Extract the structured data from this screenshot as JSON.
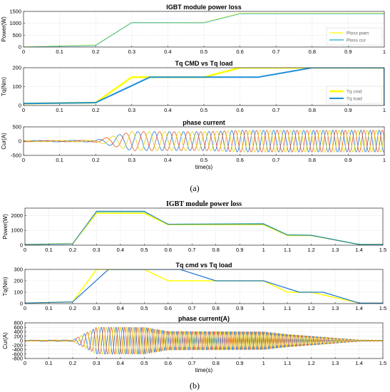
{
  "figure": {
    "label_a": "(a)",
    "label_b": "(b)"
  },
  "chart_data": [
    {
      "id": "a1",
      "type": "line",
      "title": "IGBT module power loss",
      "xlabel": "",
      "ylabel": "Power(W)",
      "xlim": [
        0,
        1
      ],
      "ylim": [
        0,
        1500
      ],
      "xticks": [
        0,
        0.1,
        0.2,
        0.3,
        0.4,
        0.5,
        0.6,
        0.7,
        0.8,
        0.9,
        1
      ],
      "yticks": [
        0,
        500,
        1000,
        1500
      ],
      "grid": true,
      "legend": "bottom-right",
      "series": [
        {
          "name": "Ploss pwm",
          "color": "#ffff33",
          "width": 1.5,
          "x": [
            0,
            0.2,
            0.3,
            0.5,
            0.6,
            1
          ],
          "y": [
            0,
            80,
            1030,
            1030,
            1420,
            1420
          ]
        },
        {
          "name": "Ploss cur",
          "color": "#3fb8c6",
          "width": 1,
          "x": [
            0,
            0.2,
            0.3,
            0.5,
            0.6,
            1
          ],
          "y": [
            0,
            70,
            1030,
            1020,
            1400,
            1400
          ]
        }
      ]
    },
    {
      "id": "a2",
      "type": "line",
      "title": "Tq CMD vs Tq load",
      "xlabel": "",
      "ylabel": "Tq(Nm)",
      "xlim": [
        0,
        1
      ],
      "ylim": [
        0,
        200
      ],
      "xticks": [
        0,
        0.1,
        0.2,
        0.3,
        0.4,
        0.5,
        0.6,
        0.7,
        0.8,
        0.9,
        1
      ],
      "yticks": [
        0,
        100,
        200
      ],
      "grid": true,
      "legend": "bottom-right",
      "series": [
        {
          "name": "Tq cmd",
          "color": "#ffff00",
          "width": 2.5,
          "x": [
            0,
            0.2,
            0.3,
            0.35,
            0.5,
            0.6,
            0.8,
            1,
            1
          ],
          "y": [
            10,
            15,
            150,
            150,
            150,
            200,
            200,
            200,
            0
          ]
        },
        {
          "name": "Tq load",
          "color": "#1f8fd6",
          "width": 2,
          "x": [
            0,
            0.2,
            0.35,
            0.65,
            0.8,
            1,
            1
          ],
          "y": [
            10,
            15,
            150,
            150,
            200,
            200,
            0
          ]
        }
      ]
    },
    {
      "id": "a3",
      "type": "line",
      "title": "phase current",
      "xlabel": "time(s)",
      "ylabel": "Cur(A)",
      "xlim": [
        0,
        1
      ],
      "ylim": [
        -500,
        500
      ],
      "xticks": [
        0,
        0.1,
        0.2,
        0.3,
        0.4,
        0.5,
        0.6,
        0.7,
        0.8,
        0.9,
        1
      ],
      "yticks": [
        -500,
        0,
        500
      ],
      "grid": true,
      "phases": [
        "#1f77d4",
        "#e8542a",
        "#e5d400"
      ],
      "freq": [
        [
          0,
          6
        ],
        [
          0.3,
          20
        ],
        [
          0.6,
          34
        ],
        [
          1,
          40
        ]
      ],
      "amp": [
        [
          0,
          20
        ],
        [
          0.2,
          30
        ],
        [
          0.3,
          330
        ],
        [
          0.5,
          330
        ],
        [
          0.6,
          380
        ],
        [
          1,
          380
        ]
      ]
    },
    {
      "id": "b1",
      "type": "line",
      "title": "IGBT module power loss",
      "xlabel": "",
      "ylabel": "Power(W)",
      "xlim": [
        0,
        1.5
      ],
      "ylim": [
        0,
        2500
      ],
      "xticks": [
        0,
        0.1,
        0.2,
        0.3,
        0.4,
        0.5,
        0.6,
        0.7,
        0.8,
        0.9,
        1,
        1.1,
        1.2,
        1.3,
        1.4,
        1.5
      ],
      "yticks": [
        0,
        1000,
        2000
      ],
      "grid": true,
      "series": [
        {
          "name": "",
          "color": "#ffff00",
          "width": 1.5,
          "x": [
            0,
            0.2,
            0.3,
            0.5,
            0.6,
            1,
            1.1,
            1.2,
            1.4,
            1.5
          ],
          "y": [
            50,
            100,
            2150,
            2150,
            1380,
            1380,
            650,
            650,
            50,
            50
          ]
        },
        {
          "name": "",
          "color": "#3fb870",
          "width": 1,
          "x": [
            0,
            0.2,
            0.3,
            0.5,
            0.6,
            1,
            1.1,
            1.2,
            1.4,
            1.5
          ],
          "y": [
            50,
            100,
            2250,
            2250,
            1420,
            1450,
            700,
            680,
            60,
            60
          ]
        },
        {
          "name": "",
          "color": "#1f77d4",
          "width": 0.8,
          "x": [
            0,
            0.2,
            0.3,
            0.5,
            0.6,
            1,
            1.1,
            1.2,
            1.4,
            1.5
          ],
          "y": [
            40,
            90,
            2300,
            2300,
            1400,
            1420,
            680,
            660,
            40,
            40
          ]
        }
      ]
    },
    {
      "id": "b2",
      "type": "line",
      "title": "Tq cmd vs Tq load",
      "xlabel": "",
      "ylabel": "Tq(Nm)",
      "xlim": [
        0,
        1.5
      ],
      "ylim": [
        0,
        300
      ],
      "xticks": [
        0,
        0.1,
        0.2,
        0.3,
        0.4,
        0.5,
        0.6,
        0.7,
        0.8,
        0.9,
        1,
        1.1,
        1.2,
        1.3,
        1.4,
        1.5
      ],
      "yticks": [
        0,
        100,
        200,
        300
      ],
      "grid": true,
      "series": [
        {
          "name": "",
          "color": "#ffff00",
          "width": 1.5,
          "x": [
            0,
            0.2,
            0.3,
            0.5,
            0.6,
            1,
            1.1,
            1.2,
            1.4,
            1.5
          ],
          "y": [
            5,
            15,
            300,
            300,
            200,
            200,
            100,
            100,
            5,
            5
          ]
        },
        {
          "name": "",
          "color": "#1f77d4",
          "width": 1.2,
          "x": [
            0,
            0.2,
            0.35,
            0.65,
            0.8,
            1,
            1.15,
            1.25,
            1.4,
            1.5
          ],
          "y": [
            5,
            15,
            300,
            300,
            200,
            200,
            100,
            100,
            5,
            5
          ]
        }
      ]
    },
    {
      "id": "b3",
      "type": "line",
      "title": "phase current(A)",
      "xlabel": "time(s)",
      "ylabel": "Cur(A)",
      "xlim": [
        0,
        1.5
      ],
      "ylim": [
        -800,
        800
      ],
      "xticks": [
        0,
        0.1,
        0.2,
        0.3,
        0.4,
        0.5,
        0.6,
        0.7,
        0.8,
        0.9,
        1,
        1.1,
        1.2,
        1.3,
        1.4,
        1.5
      ],
      "yticks": [
        -800,
        -600,
        -400,
        -200,
        0,
        200,
        400,
        600,
        800
      ],
      "grid": true,
      "phases": [
        "#1f77d4",
        "#e8542a",
        "#e5d400"
      ],
      "freq": [
        [
          0,
          6
        ],
        [
          0.3,
          20
        ],
        [
          0.6,
          34
        ],
        [
          1.0,
          42
        ],
        [
          1.5,
          46
        ]
      ],
      "amp": [
        [
          0,
          20
        ],
        [
          0.2,
          30
        ],
        [
          0.3,
          600
        ],
        [
          0.5,
          600
        ],
        [
          0.6,
          420
        ],
        [
          1.0,
          400
        ],
        [
          1.1,
          280
        ],
        [
          1.2,
          200
        ],
        [
          1.4,
          30
        ],
        [
          1.5,
          20
        ]
      ]
    }
  ]
}
